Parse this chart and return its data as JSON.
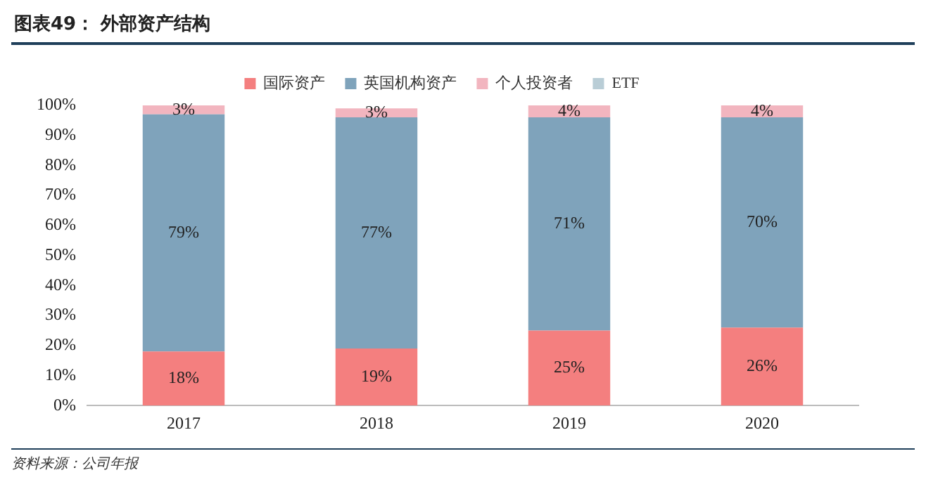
{
  "chart_data": {
    "type": "bar",
    "title": "图表49： 外部资产结构",
    "categories": [
      "2017",
      "2018",
      "2019",
      "2020"
    ],
    "stacked": true,
    "series": [
      {
        "name": "国际资产",
        "color": "#f47f7f",
        "values": [
          18,
          19,
          25,
          26
        ],
        "value_labels": [
          "18%",
          "19%",
          "25%",
          "26%"
        ]
      },
      {
        "name": "英国机构资产",
        "color": "#7fa3bb",
        "values": [
          79,
          77,
          71,
          70
        ],
        "value_labels": [
          "79%",
          "77%",
          "71%",
          "70%"
        ]
      },
      {
        "name": "个人投资者",
        "color": "#f2b5bf",
        "values": [
          3,
          3,
          4,
          4
        ],
        "value_labels": [
          "3%",
          "3%",
          "4%",
          "4%"
        ]
      },
      {
        "name": "ETF",
        "color": "#b9cdd6",
        "values": [
          null,
          null,
          null,
          null
        ]
      }
    ],
    "ylim": [
      0,
      100
    ],
    "yticks": [
      {
        "value": 0,
        "label": "0%"
      },
      {
        "value": 10,
        "label": "10%"
      },
      {
        "value": 20,
        "label": "20%"
      },
      {
        "value": 30,
        "label": "30%"
      },
      {
        "value": 40,
        "label": "40%"
      },
      {
        "value": 50,
        "label": "50%"
      },
      {
        "value": 60,
        "label": "60%"
      },
      {
        "value": 70,
        "label": "70%"
      },
      {
        "value": 80,
        "label": "80%"
      },
      {
        "value": 90,
        "label": "90%"
      },
      {
        "value": 100,
        "label": "100%"
      }
    ],
    "legend": "top",
    "annotations": [
      "资料来源：公司年报"
    ]
  }
}
